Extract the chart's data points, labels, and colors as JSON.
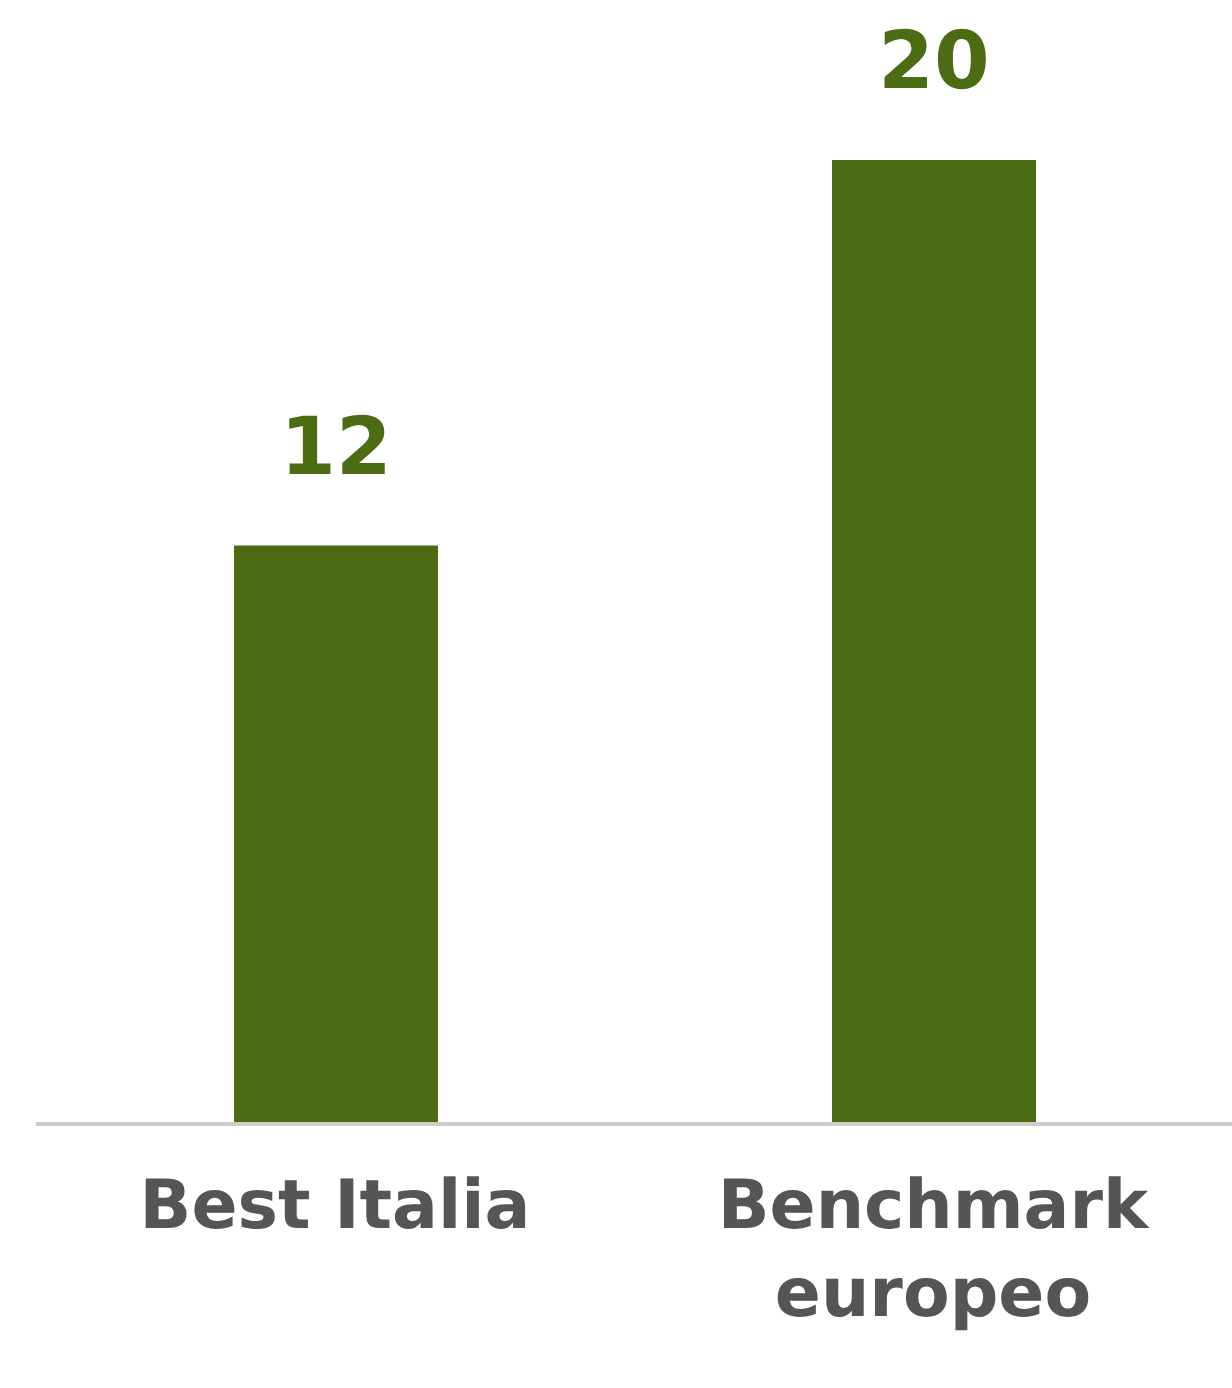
{
  "chart_data": {
    "type": "bar",
    "categories": [
      "Best Italia",
      "Benchmark europeo"
    ],
    "values": [
      12,
      20
    ],
    "color": "#4b6c12",
    "data_labels": true,
    "grid": false,
    "legend": false,
    "tick_labels": "x"
  }
}
